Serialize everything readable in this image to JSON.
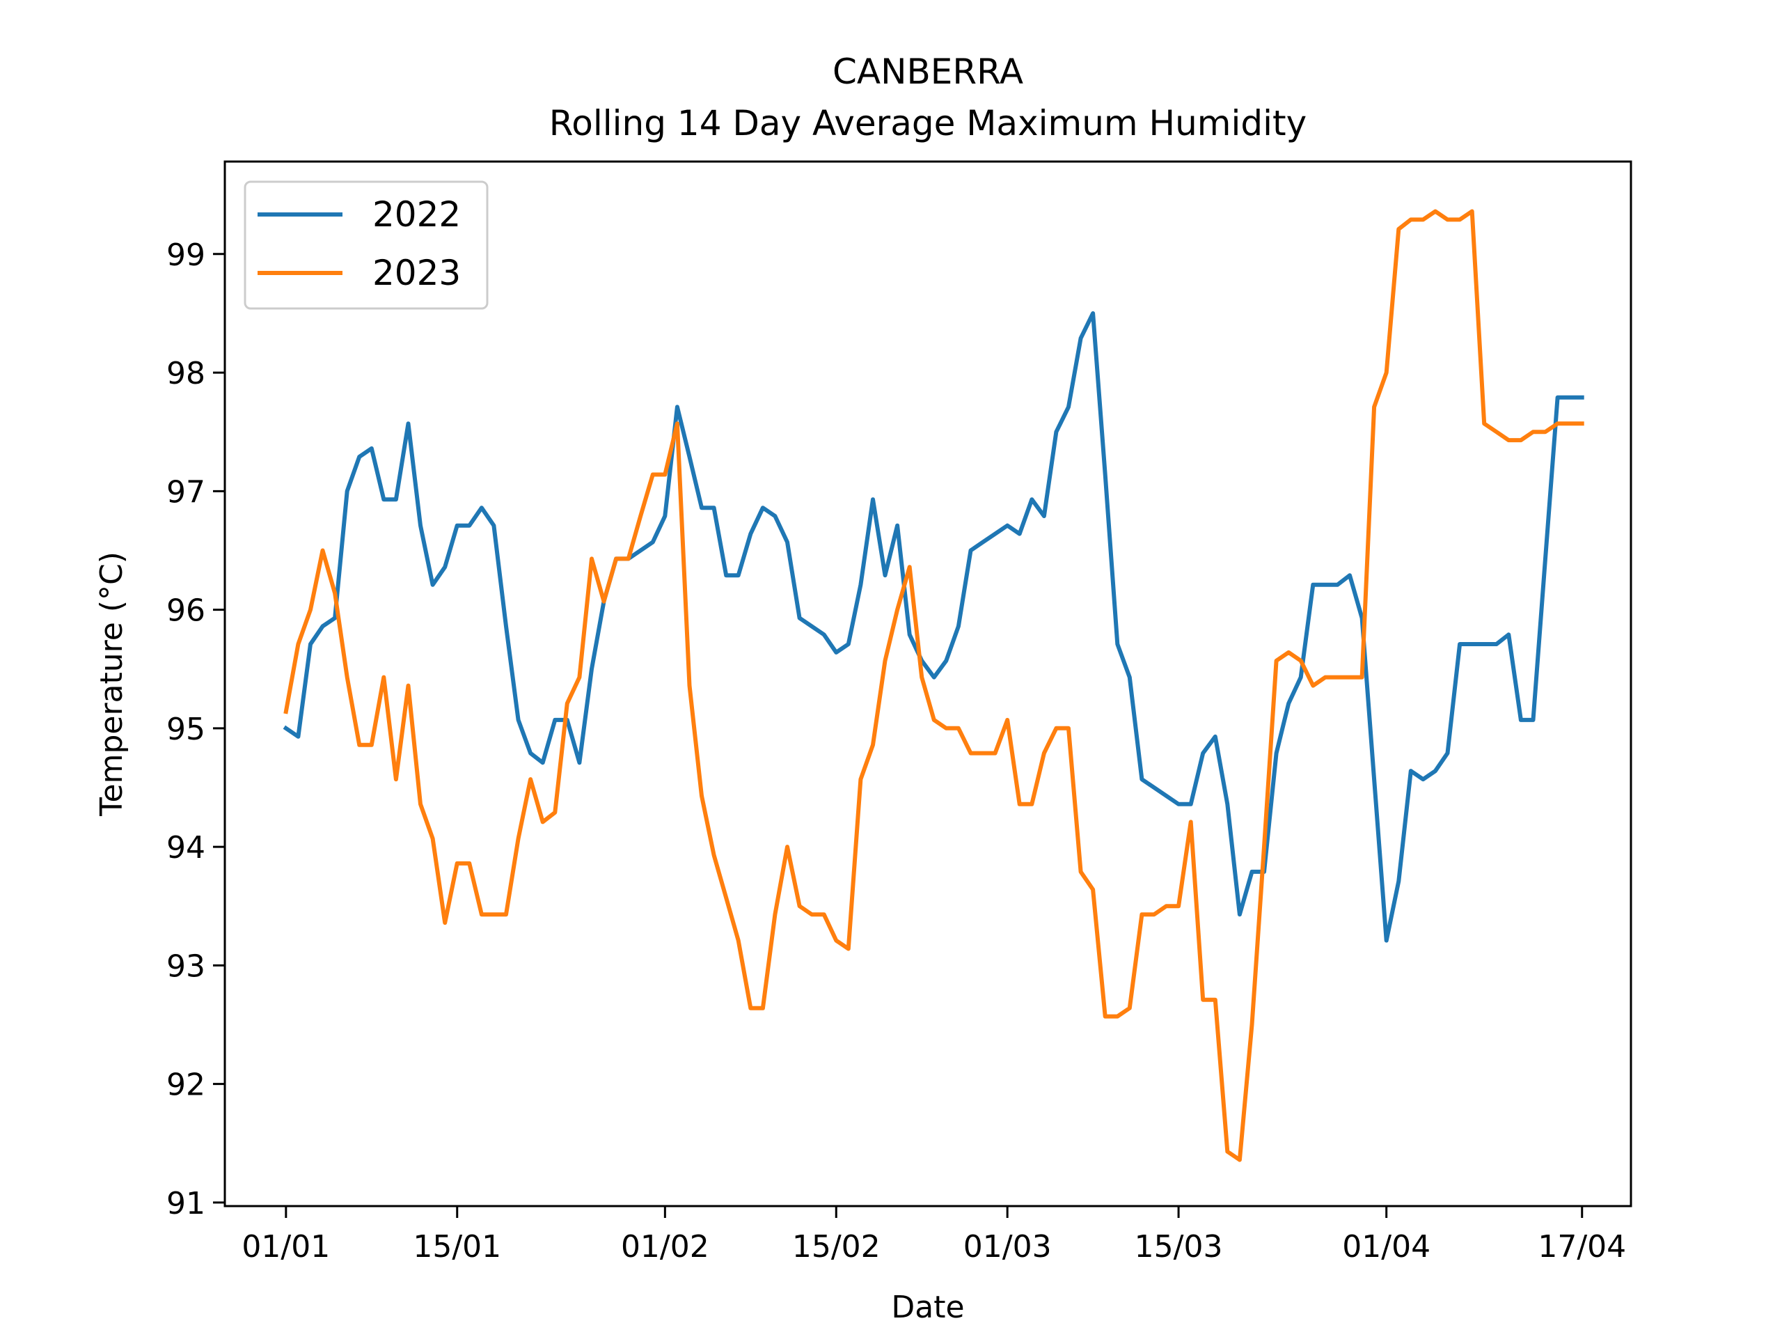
{
  "chart_data": {
    "type": "line",
    "title": "CANBERRA",
    "subtitle": "Rolling 14 Day Average Maximum Humidity",
    "xlabel": "Date",
    "ylabel": "Temperature (°C)",
    "x_start": "2023-01-01",
    "x_end": "2023-04-17",
    "xlim": [
      "2022-12-27",
      "2023-04-21"
    ],
    "ylim": [
      90.97,
      99.78
    ],
    "x_ticks": [
      {
        "date": "2023-01-01",
        "label": "01/01"
      },
      {
        "date": "2023-01-15",
        "label": "15/01"
      },
      {
        "date": "2023-02-01",
        "label": "01/02"
      },
      {
        "date": "2023-02-15",
        "label": "15/02"
      },
      {
        "date": "2023-03-01",
        "label": "01/03"
      },
      {
        "date": "2023-03-15",
        "label": "15/03"
      },
      {
        "date": "2023-04-01",
        "label": "01/04"
      },
      {
        "date": "2023-04-17",
        "label": "17/04"
      }
    ],
    "y_ticks": [
      91,
      92,
      93,
      94,
      95,
      96,
      97,
      98,
      99
    ],
    "grid": false,
    "legend_position": "top-left",
    "series": [
      {
        "name": "2022",
        "color": "#1f77b4",
        "values": [
          95.0,
          94.93,
          95.71,
          95.86,
          95.93,
          97.0,
          97.29,
          97.36,
          96.93,
          96.93,
          97.57,
          96.71,
          96.21,
          96.36,
          96.71,
          96.71,
          96.86,
          96.71,
          95.86,
          95.07,
          94.79,
          94.71,
          95.07,
          95.07,
          94.71,
          95.5,
          96.07,
          96.43,
          96.43,
          96.5,
          96.57,
          96.79,
          97.71,
          97.29,
          96.86,
          96.86,
          96.29,
          96.29,
          96.64,
          96.86,
          96.79,
          96.57,
          95.93,
          95.86,
          95.79,
          95.64,
          95.71,
          96.21,
          96.93,
          96.29,
          96.71,
          95.79,
          95.57,
          95.43,
          95.57,
          95.86,
          96.5,
          96.57,
          96.64,
          96.71,
          96.64,
          96.93,
          96.79,
          97.5,
          97.71,
          98.29,
          98.5,
          97.14,
          95.71,
          95.43,
          94.57,
          94.5,
          94.43,
          94.36,
          94.36,
          94.79,
          94.93,
          94.36,
          93.43,
          93.79,
          93.79,
          94.79,
          95.21,
          95.43,
          96.21,
          96.21,
          96.21,
          96.29,
          95.93,
          94.57,
          93.21,
          93.71,
          94.64,
          94.57,
          94.64,
          94.79,
          95.71,
          95.71,
          95.71,
          95.71,
          95.79,
          95.07,
          95.07,
          96.43,
          97.79,
          97.79,
          97.79
        ]
      },
      {
        "name": "2023",
        "color": "#ff7f0e",
        "values": [
          95.14,
          95.71,
          96.0,
          96.5,
          96.14,
          95.43,
          94.86,
          94.86,
          95.43,
          94.57,
          95.36,
          94.36,
          94.07,
          93.36,
          93.86,
          93.86,
          93.43,
          93.43,
          93.43,
          94.07,
          94.57,
          94.21,
          94.29,
          95.21,
          95.43,
          96.43,
          96.07,
          96.43,
          96.43,
          96.79,
          97.14,
          97.14,
          97.57,
          95.36,
          94.43,
          93.93,
          93.57,
          93.21,
          92.64,
          92.64,
          93.43,
          94.0,
          93.5,
          93.43,
          93.43,
          93.21,
          93.14,
          94.57,
          94.86,
          95.57,
          96.0,
          96.36,
          95.43,
          95.07,
          95.0,
          95.0,
          94.79,
          94.79,
          94.79,
          95.07,
          94.36,
          94.36,
          94.79,
          95.0,
          95.0,
          93.79,
          93.64,
          92.57,
          92.57,
          92.64,
          93.43,
          93.43,
          93.5,
          93.5,
          94.21,
          92.71,
          92.71,
          91.43,
          91.36,
          92.5,
          94.0,
          95.57,
          95.64,
          95.57,
          95.36,
          95.43,
          95.43,
          95.43,
          95.43,
          97.71,
          98.0,
          99.21,
          99.29,
          99.29,
          99.36,
          99.29,
          99.29,
          99.36,
          97.57,
          97.5,
          97.43,
          97.43,
          97.5,
          97.5,
          97.57,
          97.57,
          97.57
        ]
      }
    ]
  }
}
